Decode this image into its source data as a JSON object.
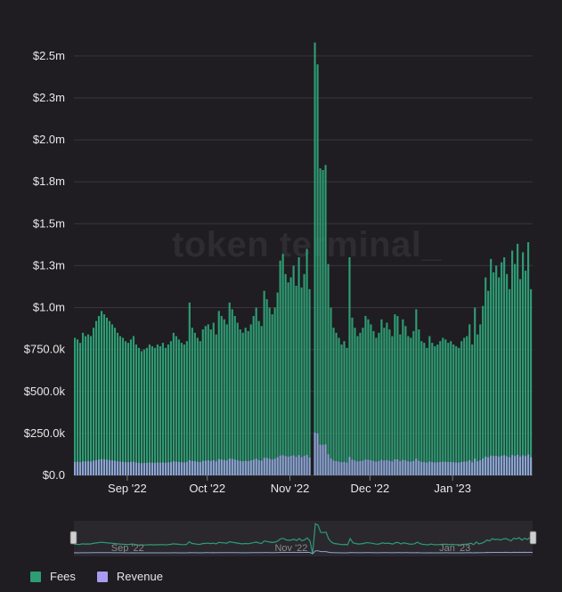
{
  "watermark": "token terminal_",
  "legend": [
    {
      "label": "Fees",
      "color": "#2e9c74"
    },
    {
      "label": "Revenue",
      "color": "#a89cf0"
    }
  ],
  "colors": {
    "fees": "#2e9c74",
    "revenue": "#8fa3d6",
    "grid": "#38363b",
    "background": "#1f1d21"
  },
  "chart_data": {
    "type": "bar",
    "title": "",
    "xlabel": "",
    "ylabel": "",
    "ylim": [
      0,
      2600000
    ],
    "y_ticks": [
      {
        "value": 0,
        "label": "$0.0"
      },
      {
        "value": 250000,
        "label": "$250.0k"
      },
      {
        "value": 500000,
        "label": "$500.0k"
      },
      {
        "value": 750000,
        "label": "$750.0k"
      },
      {
        "value": 1000000,
        "label": "$1.0m"
      },
      {
        "value": 1250000,
        "label": "$1.3m"
      },
      {
        "value": 1500000,
        "label": "$1.5m"
      },
      {
        "value": 1750000,
        "label": "$1.8m"
      },
      {
        "value": 2000000,
        "label": "$2.0m"
      },
      {
        "value": 2250000,
        "label": "$2.3m"
      },
      {
        "value": 2500000,
        "label": "$2.5m"
      }
    ],
    "x_ticks": [
      {
        "index": 20,
        "label": "Sep '22"
      },
      {
        "index": 50,
        "label": "Oct '22"
      },
      {
        "index": 81,
        "label": "Nov '22"
      },
      {
        "index": 111,
        "label": "Dec '22"
      },
      {
        "index": 142,
        "label": "Jan '23"
      }
    ],
    "navigator_ticks": [
      {
        "index": 20,
        "label": "Sep '22"
      },
      {
        "index": 81,
        "label": "Nov '22"
      },
      {
        "index": 142,
        "label": "Jan '23"
      }
    ],
    "series": [
      {
        "name": "Fees",
        "values": [
          820000,
          810000,
          790000,
          850000,
          830000,
          840000,
          830000,
          880000,
          920000,
          950000,
          980000,
          960000,
          940000,
          920000,
          900000,
          880000,
          850000,
          830000,
          820000,
          800000,
          790000,
          810000,
          830000,
          780000,
          760000,
          740000,
          750000,
          760000,
          780000,
          770000,
          760000,
          780000,
          770000,
          790000,
          760000,
          780000,
          800000,
          850000,
          830000,
          810000,
          790000,
          780000,
          800000,
          1030000,
          880000,
          850000,
          820000,
          800000,
          870000,
          890000,
          900000,
          870000,
          910000,
          840000,
          980000,
          950000,
          930000,
          900000,
          1030000,
          990000,
          950000,
          910000,
          870000,
          850000,
          880000,
          860000,
          900000,
          950000,
          1000000,
          920000,
          890000,
          1100000,
          1050000,
          1000000,
          960000,
          1000000,
          1090000,
          1280000,
          1320000,
          1200000,
          1150000,
          1180000,
          1250000,
          1130000,
          1300000,
          1120000,
          1200000,
          1350000,
          1110000,
          0,
          2580000,
          2450000,
          1830000,
          1820000,
          1850000,
          1260000,
          1000000,
          880000,
          850000,
          820000,
          780000,
          800000,
          760000,
          1300000,
          940000,
          880000,
          830000,
          850000,
          880000,
          950000,
          930000,
          900000,
          860000,
          820000,
          850000,
          930000,
          880000,
          910000,
          870000,
          830000,
          960000,
          950000,
          840000,
          930000,
          890000,
          830000,
          820000,
          860000,
          990000,
          870000,
          800000,
          790000,
          760000,
          830000,
          790000,
          770000,
          780000,
          800000,
          820000,
          810000,
          790000,
          800000,
          780000,
          770000,
          760000,
          800000,
          820000,
          830000,
          900000,
          780000,
          1000000,
          840000,
          900000,
          1010000,
          1180000,
          1100000,
          1290000,
          1210000,
          1250000,
          1180000,
          1270000,
          1300000,
          1200000,
          1110000,
          1340000,
          1260000,
          1380000,
          1170000,
          1330000,
          1220000,
          1390000,
          1110000
        ]
      },
      {
        "name": "Revenue",
        "values": [
          80000,
          82000,
          78000,
          84000,
          83000,
          85000,
          82000,
          88000,
          90000,
          95000,
          97000,
          96000,
          93000,
          91000,
          89000,
          87000,
          84000,
          82000,
          81000,
          79000,
          78000,
          80000,
          82000,
          77000,
          75000,
          73000,
          74000,
          75000,
          77000,
          76000,
          75000,
          77000,
          76000,
          78000,
          75000,
          77000,
          79000,
          84000,
          82000,
          80000,
          78000,
          77000,
          79000,
          90000,
          86000,
          84000,
          81000,
          79000,
          86000,
          88000,
          89000,
          86000,
          90000,
          83000,
          97000,
          94000,
          92000,
          89000,
          100000,
          98000,
          94000,
          90000,
          86000,
          84000,
          87000,
          85000,
          89000,
          94000,
          99000,
          91000,
          88000,
          105000,
          104000,
          99000,
          95000,
          99000,
          108000,
          118000,
          120000,
          115000,
          112000,
          116000,
          119000,
          110000,
          121000,
          108000,
          116000,
          122000,
          106000,
          0,
          255000,
          250000,
          183000,
          182000,
          185000,
          126000,
          100000,
          88000,
          85000,
          82000,
          78000,
          80000,
          76000,
          110000,
          94000,
          88000,
          83000,
          85000,
          88000,
          95000,
          93000,
          90000,
          86000,
          82000,
          85000,
          93000,
          88000,
          91000,
          87000,
          83000,
          96000,
          95000,
          84000,
          93000,
          89000,
          83000,
          82000,
          86000,
          99000,
          87000,
          80000,
          79000,
          76000,
          83000,
          79000,
          77000,
          78000,
          80000,
          82000,
          81000,
          79000,
          80000,
          78000,
          77000,
          76000,
          80000,
          82000,
          83000,
          90000,
          78000,
          100000,
          84000,
          90000,
          101000,
          112000,
          108000,
          118000,
          115000,
          116000,
          112000,
          117000,
          120000,
          114000,
          108000,
          121000,
          116000,
          123000,
          112000,
          120000,
          115000,
          125000,
          108000
        ]
      }
    ]
  }
}
